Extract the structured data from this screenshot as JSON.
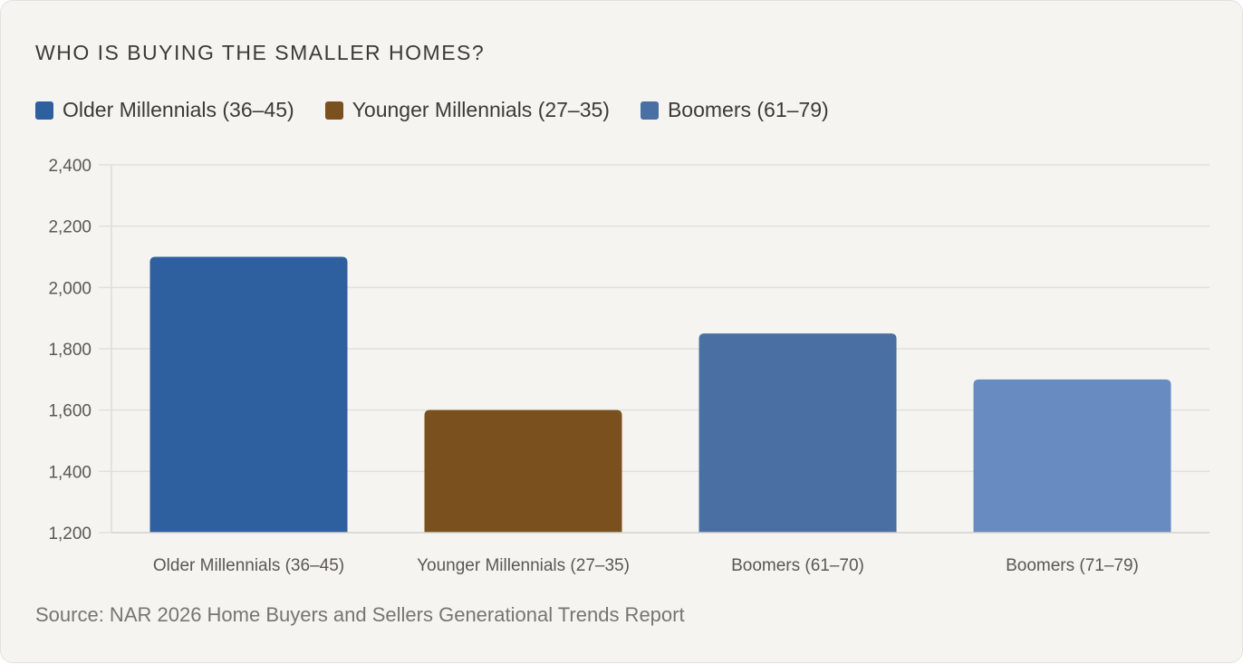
{
  "chart_data": {
    "type": "bar",
    "title": "WHO IS BUYING THE SMALLER HOMES?",
    "categories": [
      "Older Millennials (36–45)",
      "Younger Millennials (27–35)",
      "Boomers (61–70)",
      "Boomers (71–79)"
    ],
    "values": [
      2100,
      1600,
      1850,
      1700
    ],
    "bar_colors": [
      "#2e5f9f",
      "#7b501f",
      "#4a6fa2",
      "#688cc2"
    ],
    "ylim": [
      1200,
      2400
    ],
    "yticks": [
      1200,
      1400,
      1600,
      1800,
      2000,
      2200,
      2400
    ],
    "ytick_labels": [
      "1,200",
      "1,400",
      "1,600",
      "1,800",
      "2,000",
      "2,200",
      "2,400"
    ],
    "grid": true,
    "legend_position": "top-left",
    "legend": [
      {
        "label": "Older Millennials (36–45)",
        "color": "#2e5f9f"
      },
      {
        "label": "Younger Millennials (27–35)",
        "color": "#7b501f"
      },
      {
        "label": "Boomers (61–79)",
        "color": "#4a6fa2"
      }
    ],
    "source": "Source: NAR 2026 Home Buyers and Sellers Generational Trends Report"
  }
}
